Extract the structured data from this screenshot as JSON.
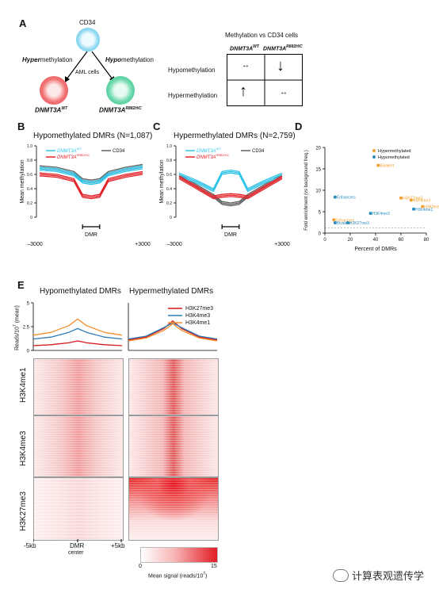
{
  "panelA": {
    "label": "A",
    "cd34": "CD34",
    "hyper_prefix": "Hyper",
    "hypo_prefix": "Hypo",
    "methylation_word": "methylation",
    "aml_cells": "AML cells",
    "wt_name": "DNMT3A",
    "wt_sup": "WT",
    "mut_name": "DNMT3A",
    "mut_sup": "R882H/C",
    "table_title": "Methylation vs CD34 cells",
    "row_hypo": "Hypomethylation",
    "row_hyper": "Hypermethylation",
    "arrow_lr": "↔",
    "arrow_down": "↓",
    "arrow_up": "↑"
  },
  "panelB": {
    "label": "B",
    "title": "Hypomethylated DMRs (N=1,087)"
  },
  "panelC": {
    "label": "C",
    "title": "Hypermethylated DMRs (N=2,759)"
  },
  "panelD": {
    "label": "D"
  },
  "panelE": {
    "label": "E",
    "col_hypo": "Hypomethylated DMRs",
    "col_hyper": "Hypermethylated DMRs",
    "ylabel": "Reads/10",
    "ylabel_sup": "7",
    "ylabel_suffix": " (mean)",
    "yticks": [
      "5",
      "2.5",
      "0"
    ],
    "legend": [
      "H3K27me3",
      "H3K4me3",
      "H3K4me1"
    ],
    "rows": [
      "H3K4me1",
      "H3K4me3",
      "H3K27me3"
    ],
    "x_left": "-5kb",
    "x_mid": "DMR",
    "x_mid2": "center",
    "x_right": "+5kb",
    "cbar_label": "Mean signal (reads/10",
    "cbar_sup": "7",
    "cbar_label_end": ")",
    "cbar_min": "0",
    "cbar_max": "15"
  },
  "line_axes": {
    "ylabel": "Mean methylation",
    "yticks": [
      "1.0",
      "0.8",
      "0.6",
      "0.4",
      "0.2",
      "0"
    ],
    "x_left": "–3000",
    "x_mid": "DMR",
    "x_right": "+3000",
    "legend_wt": "DNMT3A",
    "legend_wt_sup": "WT",
    "legend_mut": "DNMT3A",
    "legend_mut_sup": "R882H/C",
    "legend_cd34": "CD34"
  },
  "watermark": "计算表观遗传学",
  "colors": {
    "wt": "#2fc4e8",
    "mut": "#e3242b",
    "cd34": "#606060",
    "hyper": "#f2a030",
    "hypo": "#2b8cbe",
    "k27": "#d7191c",
    "k4me3": "#2c7bb6",
    "k4me1": "#f28e2b"
  },
  "chart_data": [
    {
      "type": "line",
      "title": "Hypomethylated DMRs (N=1,087)",
      "xlabel": "",
      "ylabel": "Mean methylation",
      "x": [
        -3000,
        -2000,
        -1000,
        -500,
        0,
        500,
        1000,
        2000,
        3000
      ],
      "ylim": [
        0,
        1.0
      ],
      "series": [
        {
          "name": "DNMT3A WT",
          "values": [
            0.68,
            0.66,
            0.6,
            0.5,
            0.48,
            0.5,
            0.6,
            0.66,
            0.7
          ]
        },
        {
          "name": "CD34",
          "values": [
            0.7,
            0.68,
            0.62,
            0.52,
            0.5,
            0.52,
            0.62,
            0.68,
            0.72
          ]
        },
        {
          "name": "DNMT3A R882H/C",
          "values": [
            0.6,
            0.58,
            0.52,
            0.3,
            0.28,
            0.3,
            0.52,
            0.58,
            0.62
          ]
        }
      ]
    },
    {
      "type": "line",
      "title": "Hypermethylated DMRs (N=2,759)",
      "xlabel": "",
      "ylabel": "Mean methylation",
      "x": [
        -3000,
        -2000,
        -1000,
        -500,
        0,
        500,
        1000,
        2000,
        3000
      ],
      "ylim": [
        0,
        1.0
      ],
      "series": [
        {
          "name": "DNMT3A WT",
          "values": [
            0.6,
            0.5,
            0.38,
            0.62,
            0.64,
            0.62,
            0.38,
            0.5,
            0.6
          ]
        },
        {
          "name": "CD34",
          "values": [
            0.58,
            0.44,
            0.3,
            0.2,
            0.18,
            0.2,
            0.3,
            0.44,
            0.58
          ]
        },
        {
          "name": "DNMT3A R882H/C",
          "values": [
            0.56,
            0.42,
            0.28,
            0.3,
            0.31,
            0.3,
            0.28,
            0.42,
            0.56
          ]
        }
      ]
    },
    {
      "type": "scatter",
      "xlabel": "Percent of DMRs",
      "ylabel": "Fold enrichment (vs background freq.)",
      "xlim": [
        0,
        80
      ],
      "ylim": [
        0,
        20
      ],
      "xticks": [
        "0",
        "20",
        "40",
        "60",
        "80"
      ],
      "yticks": [
        "0",
        "5",
        "10",
        "15",
        "20"
      ],
      "legend": [
        "Hypermethylated",
        "Hypomethylated"
      ],
      "series": [
        {
          "name": "Hypermethylated",
          "points": [
            {
              "label": "Bivalent",
              "x": 42,
              "y": 15.8
            },
            {
              "label": "H3K27me3",
              "x": 60,
              "y": 8.2
            },
            {
              "label": "H3K9me3",
              "x": 68,
              "y": 7.7
            },
            {
              "label": "H3K9me1",
              "x": 77,
              "y": 6.2
            },
            {
              "label": "Enhancers",
              "x": 7,
              "y": 3.1
            }
          ]
        },
        {
          "name": "Hypomethylated",
          "points": [
            {
              "label": "Enhancers",
              "x": 8,
              "y": 8.4
            },
            {
              "label": "H3K4me3",
              "x": 36,
              "y": 4.6
            },
            {
              "label": "H3K4me1",
              "x": 70,
              "y": 5.6
            },
            {
              "label": "Bivalent",
              "x": 8,
              "y": 2.4
            },
            {
              "label": "H3K27me3",
              "x": 18,
              "y": 2.4
            }
          ]
        }
      ]
    },
    {
      "type": "line",
      "title": "Hypomethylated DMRs",
      "ylabel": "Reads/10^7 (mean)",
      "x": [
        -5,
        -3,
        -1,
        0,
        1,
        3,
        5
      ],
      "ylim": [
        0,
        5
      ],
      "series": [
        {
          "name": "H3K27me3",
          "values": [
            0.5,
            0.6,
            0.8,
            1.0,
            0.8,
            0.6,
            0.5
          ]
        },
        {
          "name": "H3K4me3",
          "values": [
            1.2,
            1.4,
            1.9,
            2.3,
            1.9,
            1.4,
            1.2
          ]
        },
        {
          "name": "H3K4me1",
          "values": [
            1.6,
            1.9,
            2.6,
            3.3,
            2.6,
            1.9,
            1.6
          ]
        }
      ]
    },
    {
      "type": "line",
      "title": "Hypermethylated DMRs",
      "ylabel": "Reads/10^7 (mean)",
      "x": [
        -5,
        -3,
        -1,
        0,
        1,
        3,
        5
      ],
      "ylim": [
        0,
        5
      ],
      "series": [
        {
          "name": "H3K27me3",
          "values": [
            1.1,
            1.4,
            2.3,
            3.1,
            2.3,
            1.4,
            1.1
          ]
        },
        {
          "name": "H3K4me3",
          "values": [
            1.2,
            1.5,
            2.4,
            2.9,
            2.4,
            1.5,
            1.2
          ]
        },
        {
          "name": "H3K4me1",
          "values": [
            1.0,
            1.3,
            2.1,
            2.8,
            2.1,
            1.3,
            1.0
          ]
        }
      ]
    }
  ]
}
